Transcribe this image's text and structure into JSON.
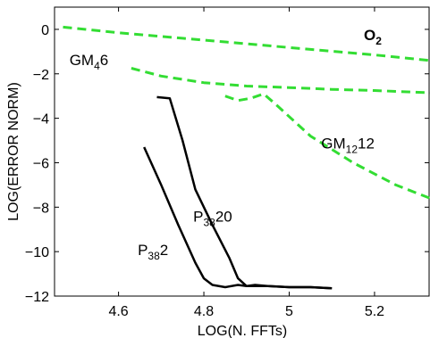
{
  "chart_data": {
    "type": "line",
    "title": "",
    "xlabel": "LOG(N. FFTs)",
    "ylabel": "LOG(ERROR NORM)",
    "xlim": [
      4.45,
      5.33
    ],
    "ylim": [
      -12,
      1
    ],
    "xticks": [
      4.6,
      4.8,
      5,
      5.2
    ],
    "xtick_labels": [
      "4.6",
      "4.8",
      "5",
      "5.2"
    ],
    "yticks": [
      0,
      -2,
      -4,
      -6,
      -8,
      -10,
      -12
    ],
    "ytick_labels": [
      "0",
      "−2",
      "−4",
      "−6",
      "−8",
      "−10",
      "−12"
    ],
    "grid": false,
    "legend": "none",
    "series": [
      {
        "key": "o2",
        "color": "#33dd33",
        "dashed": true,
        "x": [
          4.47,
          4.6,
          4.75,
          4.9,
          5.05,
          5.2,
          5.33
        ],
        "y": [
          0.1,
          -0.15,
          -0.4,
          -0.65,
          -0.9,
          -1.15,
          -1.4
        ]
      },
      {
        "key": "gm4",
        "color": "#33dd33",
        "dashed": true,
        "x": [
          4.63,
          4.7,
          4.8,
          4.9,
          5.0,
          5.1,
          5.2,
          5.33
        ],
        "y": [
          -1.75,
          -2.1,
          -2.4,
          -2.55,
          -2.62,
          -2.7,
          -2.75,
          -2.85
        ]
      },
      {
        "key": "gm12",
        "color": "#33dd33",
        "dashed": true,
        "x": [
          4.85,
          4.88,
          4.91,
          4.94,
          4.97,
          5.05,
          5.15,
          5.25,
          5.33
        ],
        "y": [
          -3.0,
          -3.2,
          -3.1,
          -2.9,
          -3.4,
          -4.8,
          -6.0,
          -7.0,
          -7.6
        ]
      },
      {
        "key": "p2",
        "color": "#000000",
        "dashed": false,
        "x": [
          4.66,
          4.7,
          4.74,
          4.78,
          4.8,
          4.82,
          4.85,
          4.88,
          4.9,
          4.95,
          5.0,
          5.05,
          5.1
        ],
        "y": [
          -5.3,
          -7.0,
          -8.8,
          -10.5,
          -11.2,
          -11.5,
          -11.6,
          -11.5,
          -11.55,
          -11.55,
          -11.6,
          -11.6,
          -11.65
        ]
      },
      {
        "key": "p20",
        "color": "#000000",
        "dashed": false,
        "x": [
          4.69,
          4.72,
          4.75,
          4.78,
          4.82,
          4.86,
          4.88,
          4.9,
          4.92,
          4.95,
          5.0,
          5.05,
          5.1
        ],
        "y": [
          -3.05,
          -3.1,
          -5.0,
          -7.2,
          -8.8,
          -10.3,
          -11.2,
          -11.55,
          -11.5,
          -11.55,
          -11.6,
          -11.6,
          -11.65
        ]
      }
    ],
    "annotations": [
      {
        "key": "o2",
        "text": "O",
        "sub": "2",
        "after": "",
        "x": 5.175,
        "y": -0.48,
        "bold": true
      },
      {
        "key": "gm4",
        "text": "GM",
        "sub": "4",
        "after": "6",
        "x": 4.485,
        "y": -1.6,
        "bold": false
      },
      {
        "key": "gm12",
        "text": "GM",
        "sub": "12",
        "after": "12",
        "x": 5.075,
        "y": -5.35,
        "bold": false
      },
      {
        "key": "p20",
        "text": "P",
        "sub": "38",
        "after": "20",
        "x": 4.775,
        "y": -8.65,
        "bold": false
      },
      {
        "key": "p2",
        "text": "P",
        "sub": "38",
        "after": "2",
        "x": 4.645,
        "y": -10.15,
        "bold": false
      }
    ]
  }
}
